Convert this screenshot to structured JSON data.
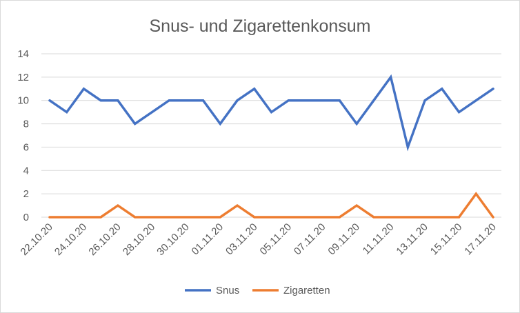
{
  "chart_data": {
    "type": "line",
    "title": "Snus- und Zigarettenkonsum",
    "xlabel": "",
    "ylabel": "",
    "ylim": [
      0,
      14
    ],
    "yticks": [
      0,
      2,
      4,
      6,
      8,
      10,
      12,
      14
    ],
    "grid": true,
    "legend_position": "bottom",
    "x": [
      "22.10.20",
      "23.10.20",
      "24.10.20",
      "25.10.20",
      "26.10.20",
      "27.10.20",
      "28.10.20",
      "29.10.20",
      "30.10.20",
      "31.10.20",
      "01.11.20",
      "02.11.20",
      "03.11.20",
      "04.11.20",
      "05.11.20",
      "06.11.20",
      "07.11.20",
      "08.11.20",
      "09.11.20",
      "10.11.20",
      "11.11.20",
      "12.11.20",
      "13.11.20",
      "14.11.20",
      "15.11.20",
      "16.11.20",
      "17.11.20"
    ],
    "x_tick_labels": [
      "22.10.20",
      "24.10.20",
      "26.10.20",
      "28.10.20",
      "30.10.20",
      "01.11.20",
      "03.11.20",
      "05.11.20",
      "07.11.20",
      "09.11.20",
      "11.11.20",
      "13.11.20",
      "15.11.20",
      "17.11.20"
    ],
    "series": [
      {
        "name": "Snus",
        "color": "#4472c4",
        "values": [
          10,
          9,
          11,
          10,
          10,
          8,
          9,
          10,
          10,
          10,
          8,
          10,
          11,
          9,
          10,
          10,
          10,
          10,
          8,
          10,
          12,
          6,
          10,
          11,
          9,
          10,
          11
        ]
      },
      {
        "name": "Zigaretten",
        "color": "#ed7d31",
        "values": [
          0,
          0,
          0,
          0,
          1,
          0,
          0,
          0,
          0,
          0,
          0,
          1,
          0,
          0,
          0,
          0,
          0,
          0,
          1,
          0,
          0,
          0,
          0,
          0,
          0,
          2,
          0
        ]
      }
    ]
  }
}
